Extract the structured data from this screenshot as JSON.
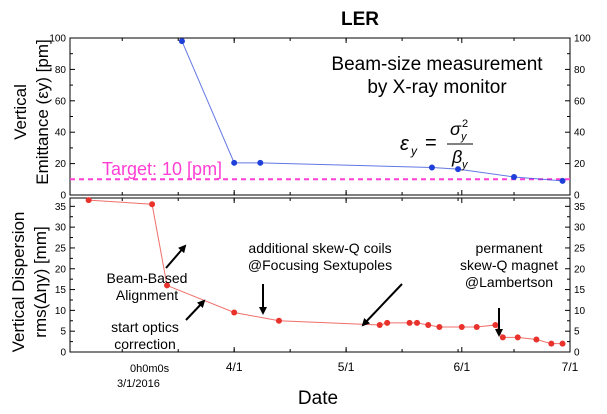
{
  "figure": {
    "title": "LER",
    "xlabel": "Date",
    "x_corner_text": "0h0m0s",
    "x_corner_date": "3/1/2016"
  },
  "chart_data": [
    {
      "type": "line",
      "panel": "top",
      "ylabel_line1": "Vertical",
      "ylabel_line2": "Emittance (εy) [pm]",
      "ylim": [
        0,
        100
      ],
      "yticks": [
        "0",
        "20",
        "40",
        "60",
        "80",
        "100"
      ],
      "xlim": [
        "2016-02-17",
        "2016-06-30"
      ],
      "xticks": [
        "4/1",
        "5/1",
        "6/1",
        "7/1"
      ],
      "grid": false,
      "series": [
        {
          "color": "#1f3fd9",
          "x": [
            "2016-03-18",
            "2016-04-01",
            "2016-04-08",
            "2016-05-24",
            "2016-05-31",
            "2016-06-15",
            "2016-06-28"
          ],
          "y": [
            98,
            20.5,
            20.5,
            17.5,
            16.5,
            11.5,
            9
          ]
        }
      ],
      "target": {
        "value": 10,
        "label": "Target: 10 [pm]",
        "color": "#ff3fd4"
      },
      "annotation_line1": "Beam-size measurement",
      "annotation_line2": "by X-ray monitor",
      "formula": {
        "lhs": "ε",
        "lhs_sub": "y",
        "eq": "=",
        "num": "σ",
        "num_sup": "2",
        "num_sub": "y",
        "den": "β",
        "den_sub": "y"
      }
    },
    {
      "type": "line",
      "panel": "bottom",
      "ylabel_line1": "Vertical Dispersion",
      "ylabel_line2": "rms(Δηy) [mm]",
      "ylim": [
        0,
        37
      ],
      "yticks": [
        "0",
        "5",
        "10",
        "15",
        "20",
        "25",
        "30",
        "35"
      ],
      "xlim": [
        "2016-02-17",
        "2016-06-30"
      ],
      "xticks": [
        "4/1",
        "5/1",
        "6/1",
        "7/1"
      ],
      "grid": false,
      "series": [
        {
          "color": "#e8322b",
          "x": [
            "2016-02-22",
            "2016-03-10",
            "2016-03-14",
            "2016-04-01",
            "2016-04-13",
            "2016-05-10",
            "2016-05-12",
            "2016-05-18",
            "2016-05-20",
            "2016-05-23",
            "2016-05-26",
            "2016-06-01",
            "2016-06-05",
            "2016-06-10",
            "2016-06-12",
            "2016-06-16",
            "2016-06-21",
            "2016-06-25",
            "2016-06-28"
          ],
          "y": [
            36.5,
            35.5,
            16,
            9.5,
            7.5,
            6.5,
            7,
            7,
            7,
            6.5,
            6,
            6,
            6,
            6.5,
            3.5,
            3.5,
            3,
            2,
            2
          ]
        }
      ],
      "annotations": [
        {
          "id": "bba",
          "line1": "Beam-Based",
          "line2": "Alignment"
        },
        {
          "id": "start",
          "line1": "start optics",
          "line2": "correction"
        },
        {
          "id": "skewq",
          "line1": "additional skew-Q coils",
          "line2": "@Focusing Sextupoles"
        },
        {
          "id": "perm",
          "line1": "permanent",
          "line2": "skew-Q magnet",
          "line3": "@Lambertson"
        }
      ]
    }
  ]
}
